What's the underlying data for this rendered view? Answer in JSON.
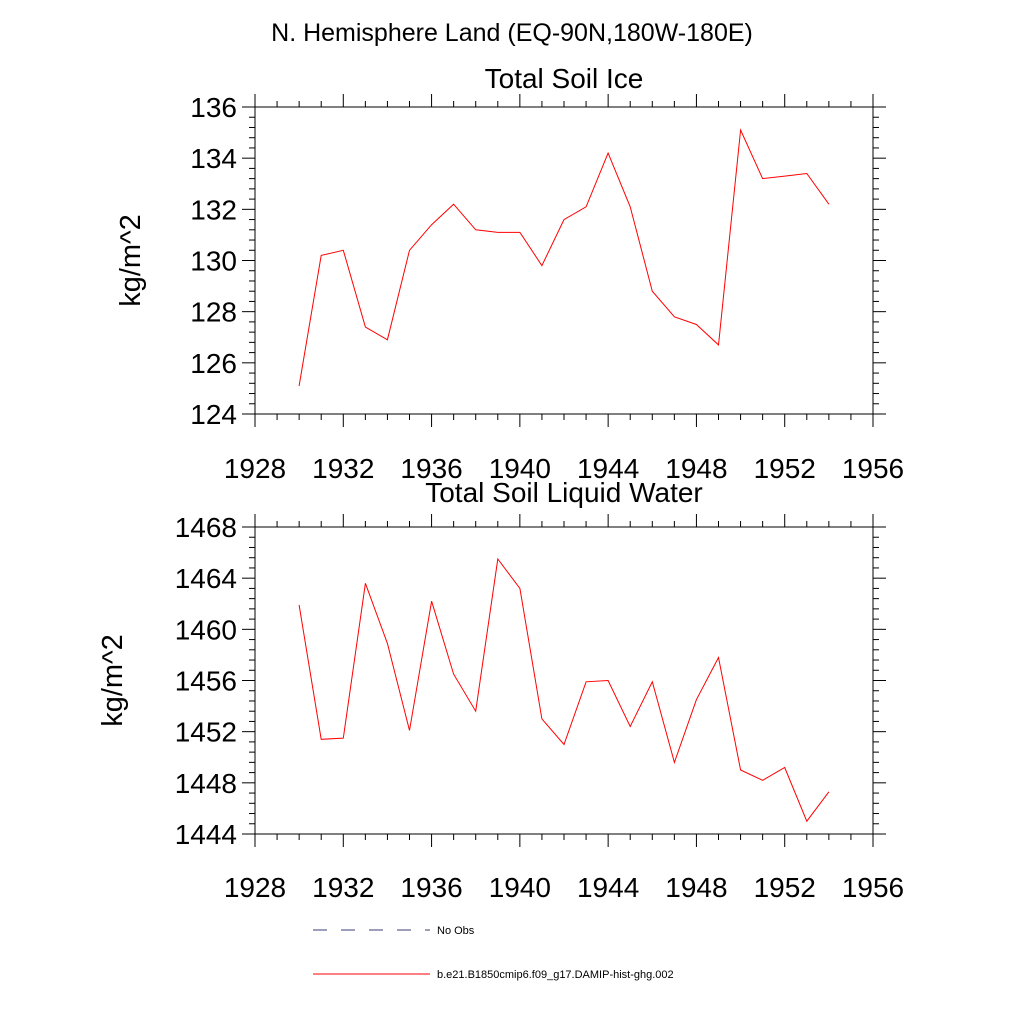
{
  "figure": {
    "supertitle": "N. Hemisphere Land (EQ-90N,180W-180E)"
  },
  "chart_data": [
    {
      "type": "line",
      "title": "Total Soil Ice",
      "xlabel": "",
      "ylabel": "kg/m^2",
      "xlim": [
        1928,
        1956
      ],
      "ylim": [
        124,
        136
      ],
      "xticks": [
        1928,
        1932,
        1936,
        1940,
        1944,
        1948,
        1952,
        1956
      ],
      "yticks": [
        124,
        126,
        128,
        130,
        132,
        134,
        136
      ],
      "grid": false,
      "series": [
        {
          "name": "b.e21.B1850cmip6.f09_g17.DAMIP-hist-ghg.002",
          "color": "#ff0000",
          "x": [
            1930,
            1931,
            1932,
            1933,
            1934,
            1935,
            1936,
            1937,
            1938,
            1939,
            1940,
            1941,
            1942,
            1943,
            1944,
            1945,
            1946,
            1947,
            1948,
            1949,
            1950,
            1951,
            1952,
            1953,
            1954
          ],
          "y": [
            125.1,
            130.2,
            130.4,
            127.4,
            126.9,
            130.4,
            131.4,
            132.2,
            131.2,
            131.1,
            131.1,
            129.8,
            131.6,
            132.1,
            134.2,
            132.1,
            128.8,
            127.8,
            127.5,
            126.7,
            135.1,
            133.2,
            133.3,
            133.4,
            132.2
          ]
        }
      ]
    },
    {
      "type": "line",
      "title": "Total Soil Liquid Water",
      "xlabel": "",
      "ylabel": "kg/m^2",
      "xlim": [
        1928,
        1956
      ],
      "ylim": [
        1444,
        1468
      ],
      "xticks": [
        1928,
        1932,
        1936,
        1940,
        1944,
        1948,
        1952,
        1956
      ],
      "yticks": [
        1444,
        1448,
        1452,
        1456,
        1460,
        1464,
        1468
      ],
      "grid": false,
      "series": [
        {
          "name": "b.e21.B1850cmip6.f09_g17.DAMIP-hist-ghg.002",
          "color": "#ff0000",
          "x": [
            1930,
            1931,
            1932,
            1933,
            1934,
            1935,
            1936,
            1937,
            1938,
            1939,
            1940,
            1941,
            1942,
            1943,
            1944,
            1945,
            1946,
            1947,
            1948,
            1949,
            1950,
            1951,
            1952,
            1953,
            1954
          ],
          "y": [
            1461.9,
            1451.4,
            1451.5,
            1463.6,
            1458.9,
            1452.1,
            1462.2,
            1456.5,
            1453.6,
            1465.5,
            1463.2,
            1453.0,
            1451.0,
            1455.9,
            1456.0,
            1452.4,
            1455.9,
            1449.6,
            1454.5,
            1457.8,
            1449.0,
            1448.2,
            1449.2,
            1445.0,
            1447.3
          ]
        }
      ]
    }
  ],
  "legend": {
    "position": "bottom",
    "entries": [
      {
        "label": "No Obs",
        "style": "dashed",
        "color": "#3b3b7a"
      },
      {
        "label": "b.e21.B1850cmip6.f09_g17.DAMIP-hist-ghg.002",
        "style": "solid",
        "color": "#ff0000"
      }
    ]
  }
}
